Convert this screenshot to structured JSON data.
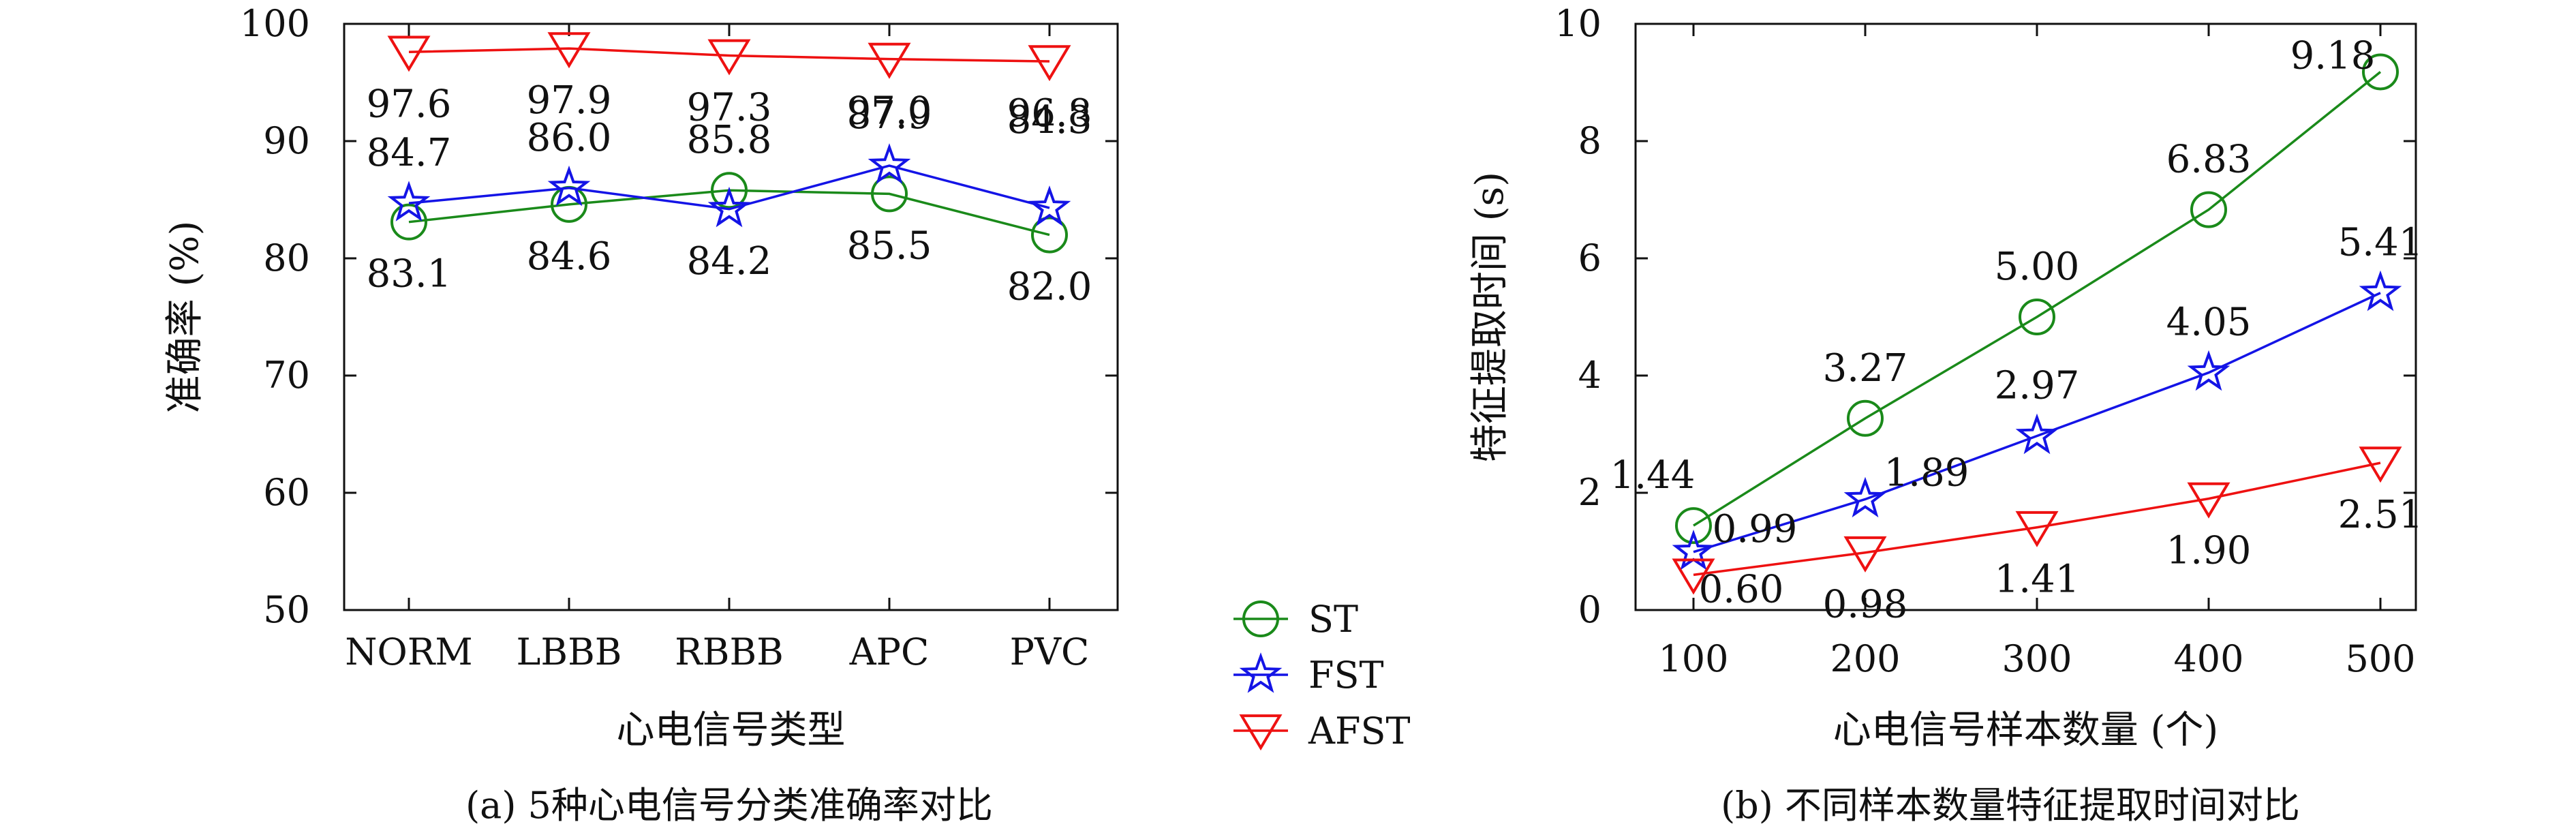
{
  "legend": [
    {
      "label": "ST",
      "color": "#1a8a1a",
      "marker": "circle"
    },
    {
      "label": "FST",
      "color": "#1414e6",
      "marker": "star"
    },
    {
      "label": "AFST",
      "color": "#ee1111",
      "marker": "triangle-down"
    }
  ],
  "chart_data": [
    {
      "type": "line",
      "caption": "(a) 5种心电信号分类准确率对比",
      "xlabel": "心电信号类型",
      "ylabel": "准确率 (%)",
      "categories": [
        "NORM",
        "LBBB",
        "RBBB",
        "APC",
        "PVC"
      ],
      "ylim": [
        50,
        100
      ],
      "yticks": [
        "50",
        "60",
        "70",
        "80",
        "90",
        "100"
      ],
      "grid": false,
      "series": [
        {
          "name": "ST",
          "values": [
            83.1,
            84.6,
            85.8,
            85.5,
            82.0
          ],
          "labels": [
            "83.1",
            "84.6",
            "85.8",
            "85.5",
            "82.0"
          ]
        },
        {
          "name": "FST",
          "values": [
            84.7,
            86.0,
            84.2,
            87.9,
            84.3
          ],
          "labels": [
            "84.7",
            "86.0",
            "84.2",
            "87.9",
            "84.3"
          ]
        },
        {
          "name": "AFST",
          "values": [
            97.6,
            97.9,
            97.3,
            97.0,
            96.8
          ],
          "labels": [
            "97.6",
            "97.9",
            "97.3",
            "97.0",
            "96.8"
          ]
        }
      ]
    },
    {
      "type": "line",
      "caption": "(b) 不同样本数量特征提取时间对比",
      "xlabel": "心电信号样本数量 (个)",
      "ylabel": "特征提取时间 (s)",
      "categories": [
        "100",
        "200",
        "300",
        "400",
        "500"
      ],
      "x": [
        100,
        200,
        300,
        400,
        500
      ],
      "ylim": [
        0,
        10
      ],
      "yticks": [
        "0",
        "2",
        "4",
        "6",
        "8",
        "10"
      ],
      "grid": false,
      "series": [
        {
          "name": "ST",
          "values": [
            1.44,
            3.27,
            5.0,
            6.83,
            9.18
          ],
          "labels": [
            "1.44",
            "3.27",
            "5.00",
            "6.83",
            "9.18"
          ]
        },
        {
          "name": "FST",
          "values": [
            0.99,
            1.89,
            2.97,
            4.05,
            5.41
          ],
          "labels": [
            "0.99",
            "1.89",
            "2.97",
            "4.05",
            "5.41"
          ]
        },
        {
          "name": "AFST",
          "values": [
            0.6,
            0.98,
            1.41,
            1.9,
            2.51
          ],
          "labels": [
            "0.60",
            "0.98",
            "1.41",
            "1.90",
            "2.51"
          ]
        }
      ]
    }
  ]
}
